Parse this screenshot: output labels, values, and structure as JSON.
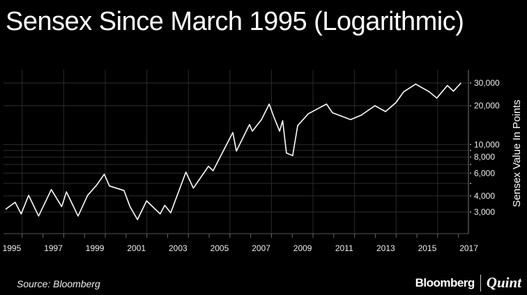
{
  "chart_data": {
    "type": "line",
    "title": "Sensex Since March 1995 (Logarithmic)",
    "xlabel": "",
    "ylabel": "Sensex Value In Points",
    "y_scale": "log",
    "ylim": [
      2100,
      34000
    ],
    "xlim": [
      1995.2,
      2017.3
    ],
    "grid": true,
    "line_color": "#ffffff",
    "background": "#000000",
    "x_tick_labels": [
      "1995",
      "1997",
      "1999",
      "2001",
      "2003",
      "2005",
      "2007",
      "2009",
      "2011",
      "2013",
      "2015",
      "2017"
    ],
    "y_ticks": [
      {
        "value": 30000,
        "label": "30,000"
      },
      {
        "value": 20000,
        "label": "20,000"
      },
      {
        "value": 10000,
        "label": "10,000"
      },
      {
        "value": 9000,
        "label": ""
      },
      {
        "value": 8000,
        "label": "8,000"
      },
      {
        "value": 7000,
        "label": ""
      },
      {
        "value": 6000,
        "label": "6,000"
      },
      {
        "value": 5000,
        "label": ""
      },
      {
        "value": 4000,
        "label": "4,000"
      },
      {
        "value": 3000,
        "label": "3,000"
      }
    ],
    "series": [
      {
        "x": [
          1995.2,
          1995.66,
          1995.95,
          1996.31,
          1996.79,
          1997.4,
          1997.9,
          1998.13,
          1998.69,
          1999.15,
          1999.59,
          1999.95,
          2000.2,
          2000.9,
          2001.19,
          2001.55,
          2001.99,
          2002.64,
          2002.86,
          2003.15,
          2003.88,
          2004.24,
          2004.97,
          2005.19,
          2006.14,
          2006.31,
          2006.94,
          2007.08,
          2007.52,
          2007.89,
          2008.1,
          2008.39,
          2008.54,
          2008.72,
          2009.02,
          2009.26,
          2009.77,
          2010.65,
          2010.94,
          2011.81,
          2012.32,
          2012.98,
          2013.49,
          2014.0,
          2014.36,
          2014.94,
          2015.6,
          2015.96,
          2016.47,
          2016.76,
          2017.12
        ],
        "y": [
          3150,
          3570,
          2900,
          4040,
          2790,
          4480,
          3300,
          4300,
          2790,
          4040,
          4860,
          5890,
          4770,
          4400,
          3300,
          2620,
          3660,
          2900,
          3380,
          2960,
          6110,
          4590,
          6800,
          6270,
          12400,
          8900,
          14300,
          12700,
          15600,
          20600,
          16600,
          12700,
          15300,
          8600,
          8200,
          14000,
          17300,
          20600,
          17600,
          15600,
          16900,
          20000,
          18000,
          21200,
          25600,
          29400,
          25600,
          22900,
          28700,
          25900,
          30000
        ]
      }
    ]
  },
  "footer": {
    "source": "Source: Bloomberg",
    "brand_left": "Bloomberg",
    "brand_right": "Quint"
  }
}
